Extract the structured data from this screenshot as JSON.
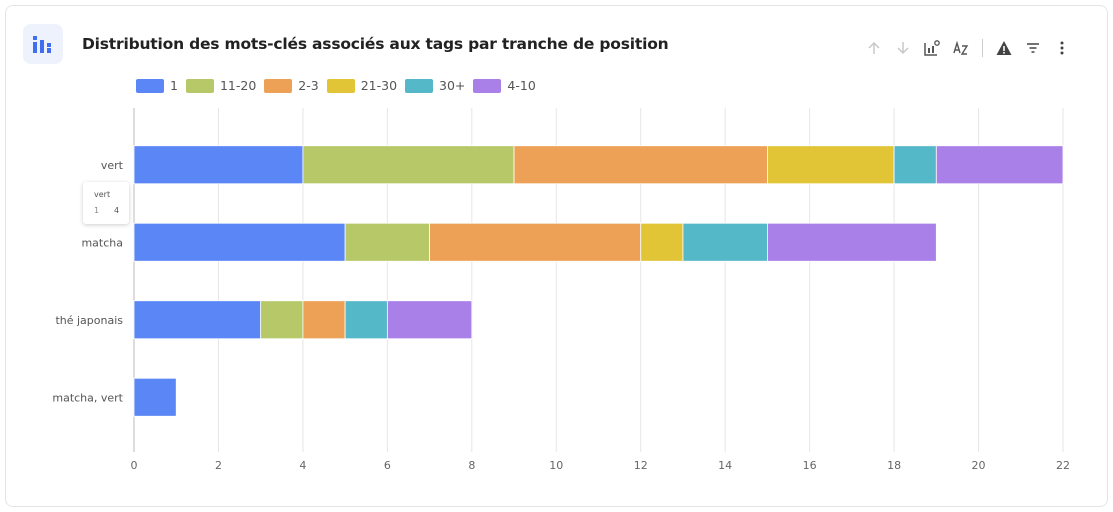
{
  "header": {
    "title": "Distribution des mots-clés associés aux tags par tranche de position",
    "icon": "bar-chart-icon"
  },
  "toolbar": {
    "icons": [
      "arrow-up-icon",
      "arrow-down-icon",
      "chart-settings-icon",
      "sort-az-icon",
      "warning-icon",
      "filter-icon",
      "more-vertical-icon"
    ]
  },
  "tooltip": {
    "category": "vert",
    "series": "1",
    "value": "4"
  },
  "chart_data": {
    "type": "bar",
    "orientation": "horizontal",
    "stacked": true,
    "categories": [
      "vert",
      "matcha",
      "thé japonais",
      "matcha, vert"
    ],
    "series": [
      {
        "name": "1",
        "color": "#5b86f5",
        "values": [
          4,
          5,
          3,
          1
        ]
      },
      {
        "name": "11-20",
        "color": "#b6c867",
        "values": [
          5,
          2,
          1,
          0
        ]
      },
      {
        "name": "2-3",
        "color": "#eca156",
        "values": [
          6,
          5,
          1,
          0
        ]
      },
      {
        "name": "21-30",
        "color": "#e2c437",
        "values": [
          3,
          1,
          0,
          0
        ]
      },
      {
        "name": "30+",
        "color": "#55b8c9",
        "values": [
          1,
          2,
          1,
          0
        ]
      },
      {
        "name": "4-10",
        "color": "#a97fe8",
        "values": [
          3,
          4,
          2,
          0
        ]
      }
    ],
    "xlim": [
      0,
      22
    ],
    "xticks": [
      0,
      2,
      4,
      6,
      8,
      10,
      12,
      14,
      16,
      18,
      20,
      22
    ],
    "grid": true,
    "legend": "top-left"
  }
}
